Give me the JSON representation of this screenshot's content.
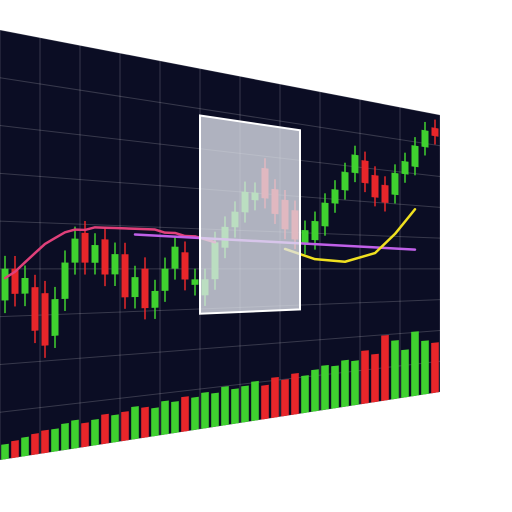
{
  "chart_data": {
    "type": "candlestick",
    "open": [
      18,
      28,
      20,
      22,
      20,
      6,
      18,
      30,
      40,
      30,
      38,
      26,
      33,
      18,
      28,
      14,
      20,
      28,
      34,
      22,
      18,
      24,
      36,
      44,
      50,
      55,
      68,
      60,
      56,
      52,
      38,
      40,
      46,
      56,
      62,
      70,
      76,
      70,
      66,
      62,
      72,
      76,
      86,
      96
    ],
    "close": [
      28,
      20,
      25,
      8,
      3,
      18,
      30,
      38,
      30,
      36,
      26,
      33,
      18,
      25,
      14,
      20,
      28,
      36,
      24,
      24,
      24,
      38,
      44,
      50,
      58,
      58,
      56,
      50,
      44,
      40,
      44,
      48,
      56,
      62,
      70,
      78,
      66,
      60,
      58,
      72,
      78,
      86,
      94,
      92
    ],
    "high": [
      32,
      32,
      29,
      26,
      24,
      22,
      34,
      42,
      44,
      40,
      42,
      37,
      37,
      29,
      32,
      24,
      32,
      40,
      38,
      28,
      28,
      42,
      48,
      54,
      62,
      62,
      72,
      64,
      60,
      56,
      48,
      52,
      60,
      66,
      74,
      82,
      80,
      74,
      70,
      76,
      82,
      90,
      98,
      100
    ],
    "low": [
      14,
      16,
      16,
      4,
      -1,
      2,
      14,
      26,
      26,
      26,
      22,
      22,
      14,
      14,
      10,
      10,
      16,
      24,
      20,
      18,
      14,
      20,
      32,
      40,
      46,
      51,
      52,
      46,
      40,
      36,
      34,
      36,
      42,
      52,
      58,
      66,
      62,
      56,
      54,
      58,
      68,
      72,
      82,
      88
    ],
    "volume": [
      14,
      16,
      18,
      20,
      22,
      22,
      26,
      28,
      24,
      26,
      30,
      28,
      30,
      34,
      32,
      30,
      36,
      34,
      38,
      36,
      40,
      38,
      44,
      40,
      42,
      46,
      40,
      48,
      44,
      50,
      46,
      52,
      56,
      54,
      60,
      58,
      70,
      64,
      88,
      80,
      66,
      90,
      76,
      72
    ],
    "up_color": "#3fd12f",
    "down_color": "#e8262a",
    "ylim": [
      -5,
      100
    ],
    "volume_lim": [
      0,
      100
    ],
    "overlays": [
      {
        "color": "#e0407a",
        "x": [
          0,
          1,
          2,
          3,
          4,
          5,
          6,
          7,
          8,
          9,
          10,
          11,
          12,
          13,
          14,
          15,
          16,
          17,
          18,
          19,
          20,
          21
        ],
        "values": [
          25,
          27,
          30,
          33,
          36,
          38,
          40,
          41,
          41,
          42,
          42,
          42,
          42,
          42,
          42,
          42,
          41,
          41,
          40,
          40,
          39,
          38
        ]
      },
      {
        "color": "#c060e8",
        "x": [
          13,
          41
        ],
        "values": [
          40,
          37
        ]
      },
      {
        "color": "#f0e020",
        "x": [
          28,
          31,
          34,
          37,
          39,
          41
        ],
        "values": [
          36,
          32,
          31,
          35,
          44,
          56
        ]
      }
    ],
    "highlight": {
      "start": 20,
      "end": 30
    },
    "grid": true
  }
}
